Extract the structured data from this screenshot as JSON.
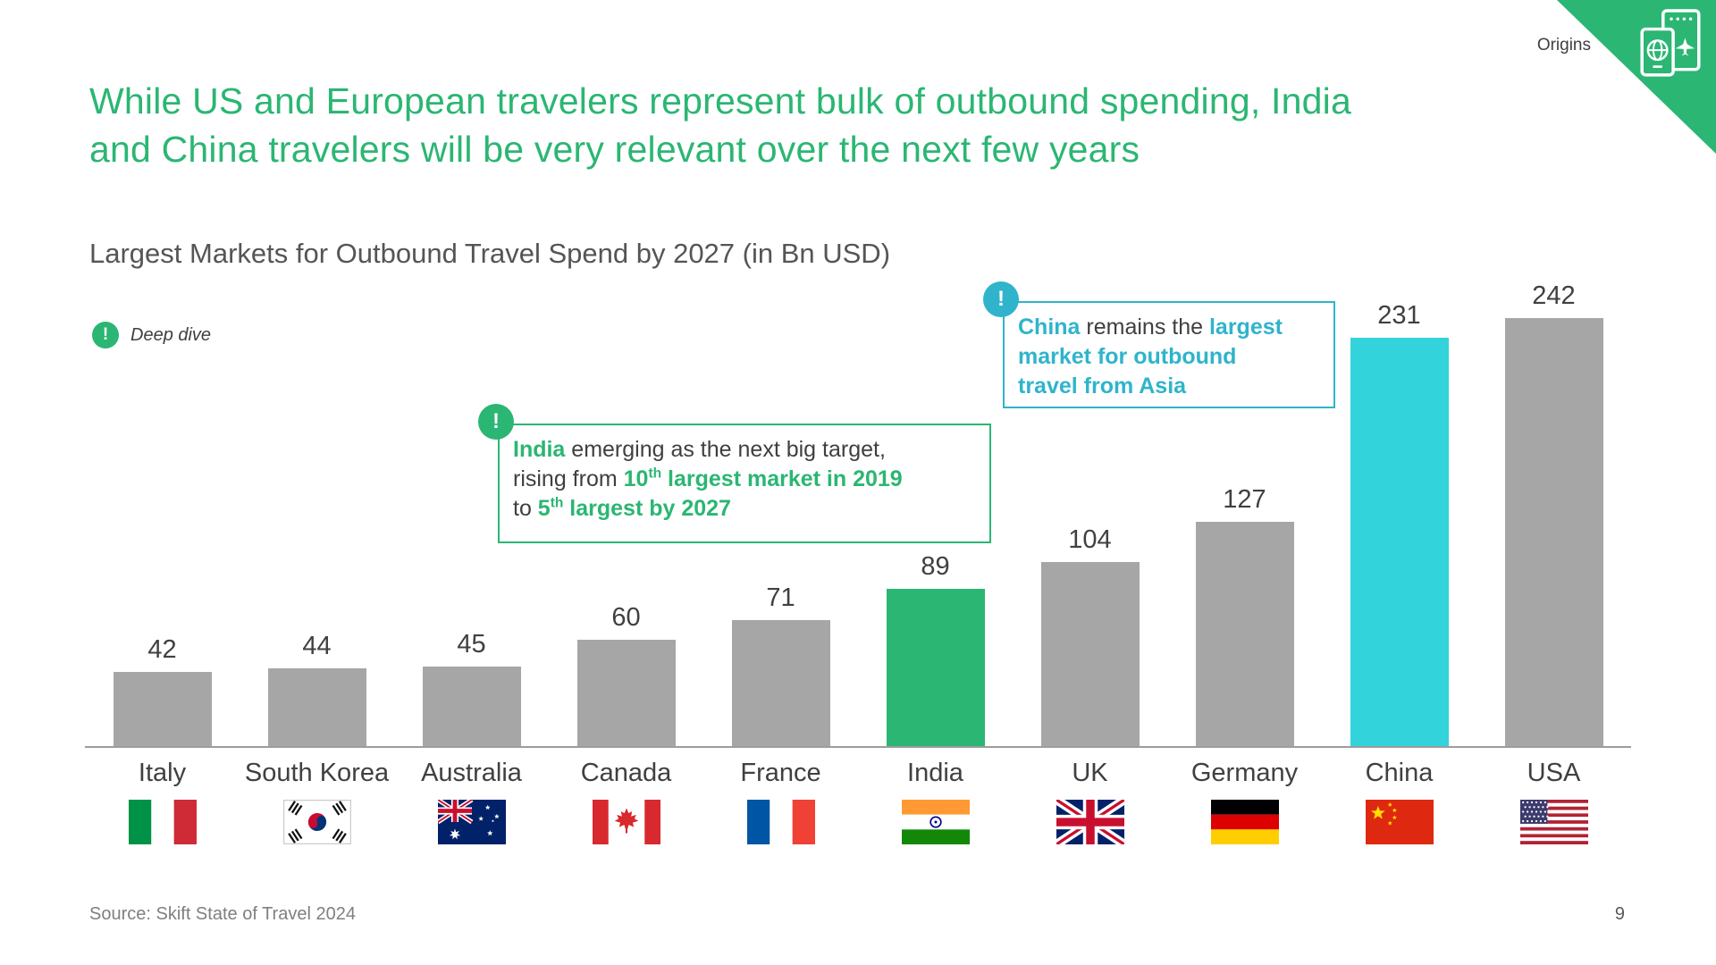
{
  "slide": {
    "origins_label": "Origins",
    "title_line1": "While US and European travelers represent bulk of outbound spending, India",
    "title_line2": "and China travelers will be very relevant over the next few years",
    "deep_dive": {
      "icon_glyph": "!",
      "label": "Deep dive"
    },
    "source": "Source: Skift State of Travel 2024",
    "page_number": "9"
  },
  "colors": {
    "green": "#2BB673",
    "cyan_bar": "#33D3DB",
    "cyan_accent": "#2FB4CB",
    "gray_bar": "#A6A6A6",
    "text_dark": "#404040",
    "text_gray": "#7F7F7F"
  },
  "chart_data": {
    "type": "bar",
    "title": "Largest Markets for Outbound Travel Spend by 2027 (in Bn USD)",
    "unit": "Bn USD",
    "categories": [
      "Italy",
      "South Korea",
      "Australia",
      "Canada",
      "France",
      "India",
      "UK",
      "Germany",
      "China",
      "USA"
    ],
    "values": [
      42,
      44,
      45,
      60,
      71,
      89,
      104,
      127,
      231,
      242
    ],
    "bar_colors": [
      "gray",
      "gray",
      "gray",
      "gray",
      "gray",
      "green",
      "gray",
      "gray",
      "cyan",
      "gray"
    ],
    "flags": [
      "italy",
      "south-korea",
      "australia",
      "canada",
      "france",
      "india",
      "uk",
      "germany",
      "china",
      "usa"
    ],
    "value_labels_shown": true,
    "legend": "none",
    "gridlines": "none",
    "ylim": [
      0,
      260
    ]
  },
  "callouts": {
    "india": {
      "badge_glyph": "!",
      "accent": "green",
      "lines": [
        [
          {
            "t": "India",
            "b": 1
          },
          {
            "t": " emerging as the next big target,"
          }
        ],
        [
          {
            "t": "rising from "
          },
          {
            "t": "10",
            "b": 1
          },
          {
            "t": "th",
            "b": 1,
            "sup": 1
          },
          {
            "t": " largest market in 2019",
            "b": 1
          }
        ],
        [
          {
            "t": "to "
          },
          {
            "t": "5",
            "b": 1
          },
          {
            "t": "th",
            "b": 1,
            "sup": 1
          },
          {
            "t": " largest by 2027",
            "b": 1
          }
        ]
      ]
    },
    "china": {
      "badge_glyph": "!",
      "accent": "cyan_accent",
      "lines": [
        [
          {
            "t": "China",
            "b": 1
          },
          {
            "t": " remains the "
          },
          {
            "t": "largest",
            "b": 1
          }
        ],
        [
          {
            "t": "market for outbound",
            "b": 1
          }
        ],
        [
          {
            "t": "travel from Asia",
            "b": 1
          }
        ]
      ]
    }
  }
}
